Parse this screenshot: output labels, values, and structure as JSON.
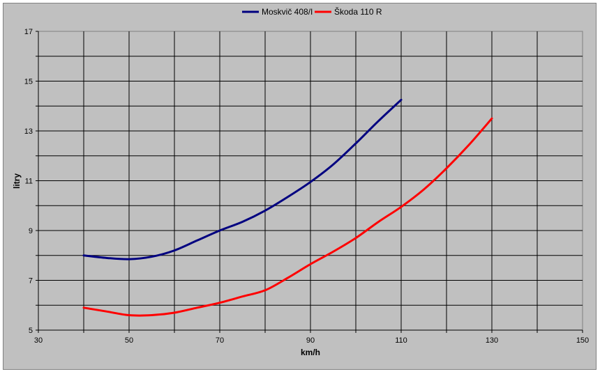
{
  "chart_data": {
    "type": "line",
    "title": "",
    "xlabel": "km/h",
    "ylabel": "litry",
    "xlim": [
      30,
      150
    ],
    "ylim": [
      5,
      17
    ],
    "x_ticks": [
      30,
      50,
      70,
      90,
      110,
      130,
      150
    ],
    "y_ticks": [
      5,
      7,
      9,
      11,
      13,
      15,
      17
    ],
    "grid": true,
    "legend_position": "top",
    "background": "#c0c0c0",
    "series": [
      {
        "name": "Moskvič 408/I",
        "color": "#000080",
        "x": [
          40,
          45,
          50,
          55,
          60,
          65,
          70,
          75,
          80,
          85,
          90,
          95,
          100,
          105,
          110
        ],
        "y": [
          8.0,
          7.9,
          7.85,
          7.95,
          8.2,
          8.6,
          9.0,
          9.35,
          9.8,
          10.35,
          10.95,
          11.65,
          12.5,
          13.4,
          14.25
        ]
      },
      {
        "name": "Škoda 110 R",
        "color": "#ff0000",
        "x": [
          40,
          45,
          50,
          55,
          60,
          65,
          70,
          75,
          80,
          85,
          90,
          95,
          100,
          105,
          110,
          115,
          120,
          125,
          130
        ],
        "y": [
          5.9,
          5.75,
          5.6,
          5.6,
          5.7,
          5.9,
          6.1,
          6.35,
          6.6,
          7.1,
          7.65,
          8.15,
          8.7,
          9.35,
          9.95,
          10.65,
          11.5,
          12.45,
          13.5
        ]
      }
    ]
  }
}
